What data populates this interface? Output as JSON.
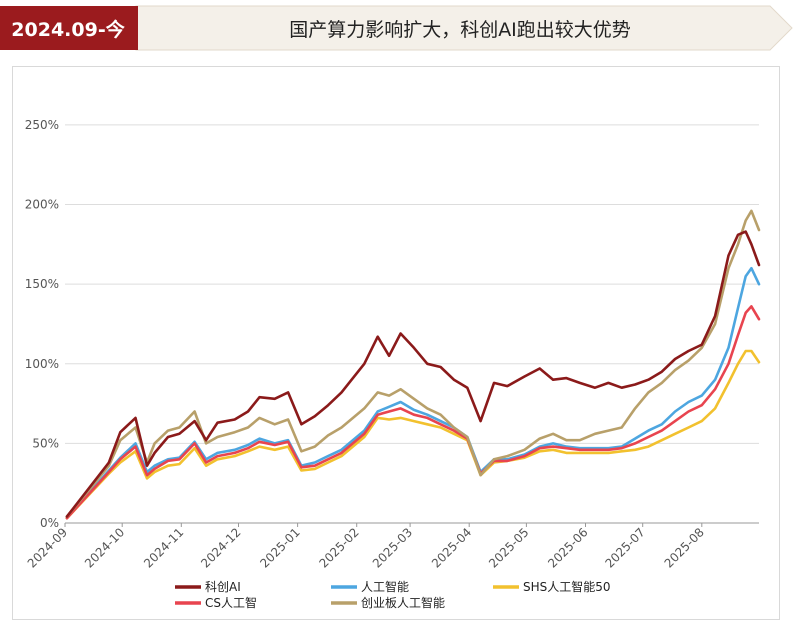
{
  "header": {
    "period": "2024.09-今",
    "headline": "国产算力影响扩大，科创AI跑出较大优势"
  },
  "colors": {
    "banner_red": "#9b1b1e",
    "banner_bg": "#f4f0e9"
  },
  "chart_data": {
    "type": "line",
    "title": "",
    "xlabel": "",
    "ylabel": "",
    "x_start": "2024-09",
    "x_end": "2025-08",
    "x_ticks": [
      "2024-09",
      "2024-10",
      "2024-11",
      "2024-12",
      "2025-01",
      "2025-02",
      "2025-03",
      "2025-04",
      "2025-05",
      "2025-06",
      "2025-07",
      "2025-08"
    ],
    "y_ticks": [
      "0%",
      "50%",
      "100%",
      "150%",
      "200%",
      "250%"
    ],
    "y_tick_values": [
      0,
      50,
      100,
      150,
      200,
      250
    ],
    "ylim": [
      0,
      260
    ],
    "grid": true,
    "legend_position": "bottom",
    "series": [
      {
        "name": "科创AI",
        "color": "#8b1a1a",
        "points": [
          [
            "2024-09-02",
            4
          ],
          [
            "2024-09-24",
            38
          ],
          [
            "2024-09-30",
            57
          ],
          [
            "2024-10-08",
            66
          ],
          [
            "2024-10-14",
            36
          ],
          [
            "2024-10-18",
            44
          ],
          [
            "2024-10-25",
            54
          ],
          [
            "2024-10-31",
            56
          ],
          [
            "2024-11-08",
            64
          ],
          [
            "2024-11-14",
            52
          ],
          [
            "2024-11-20",
            63
          ],
          [
            "2024-11-29",
            65
          ],
          [
            "2024-12-06",
            70
          ],
          [
            "2024-12-12",
            79
          ],
          [
            "2024-12-20",
            78
          ],
          [
            "2024-12-27",
            82
          ],
          [
            "2025-01-03",
            62
          ],
          [
            "2025-01-10",
            67
          ],
          [
            "2025-01-17",
            74
          ],
          [
            "2025-01-24",
            82
          ],
          [
            "2025-02-05",
            100
          ],
          [
            "2025-02-12",
            117
          ],
          [
            "2025-02-18",
            105
          ],
          [
            "2025-02-24",
            119
          ],
          [
            "2025-03-03",
            110
          ],
          [
            "2025-03-10",
            100
          ],
          [
            "2025-03-17",
            98
          ],
          [
            "2025-03-24",
            90
          ],
          [
            "2025-03-31",
            85
          ],
          [
            "2025-04-07",
            64
          ],
          [
            "2025-04-14",
            88
          ],
          [
            "2025-04-21",
            86
          ],
          [
            "2025-04-30",
            92
          ],
          [
            "2025-05-08",
            97
          ],
          [
            "2025-05-15",
            90
          ],
          [
            "2025-05-22",
            91
          ],
          [
            "2025-05-29",
            88
          ],
          [
            "2025-06-06",
            85
          ],
          [
            "2025-06-13",
            88
          ],
          [
            "2025-06-20",
            85
          ],
          [
            "2025-06-27",
            87
          ],
          [
            "2025-07-04",
            90
          ],
          [
            "2025-07-11",
            95
          ],
          [
            "2025-07-18",
            103
          ],
          [
            "2025-07-25",
            108
          ],
          [
            "2025-08-01",
            112
          ],
          [
            "2025-08-08",
            130
          ],
          [
            "2025-08-15",
            168
          ],
          [
            "2025-08-20",
            181
          ],
          [
            "2025-08-24",
            183
          ],
          [
            "2025-08-27",
            175
          ],
          [
            "2025-08-31",
            162
          ]
        ]
      },
      {
        "name": "人工智能",
        "color": "#4da6e0",
        "points": [
          [
            "2024-09-02",
            3
          ],
          [
            "2024-09-24",
            33
          ],
          [
            "2024-09-30",
            41
          ],
          [
            "2024-10-08",
            50
          ],
          [
            "2024-10-14",
            32
          ],
          [
            "2024-10-18",
            36
          ],
          [
            "2024-10-25",
            40
          ],
          [
            "2024-10-31",
            41
          ],
          [
            "2024-11-08",
            51
          ],
          [
            "2024-11-14",
            40
          ],
          [
            "2024-11-20",
            44
          ],
          [
            "2024-11-29",
            46
          ],
          [
            "2024-12-06",
            49
          ],
          [
            "2024-12-12",
            53
          ],
          [
            "2024-12-20",
            50
          ],
          [
            "2024-12-27",
            52
          ],
          [
            "2025-01-03",
            36
          ],
          [
            "2025-01-10",
            38
          ],
          [
            "2025-01-17",
            42
          ],
          [
            "2025-01-24",
            46
          ],
          [
            "2025-02-05",
            58
          ],
          [
            "2025-02-12",
            70
          ],
          [
            "2025-02-18",
            73
          ],
          [
            "2025-02-24",
            76
          ],
          [
            "2025-03-03",
            71
          ],
          [
            "2025-03-10",
            68
          ],
          [
            "2025-03-17",
            64
          ],
          [
            "2025-03-24",
            60
          ],
          [
            "2025-03-31",
            54
          ],
          [
            "2025-04-07",
            32
          ],
          [
            "2025-04-14",
            40
          ],
          [
            "2025-04-21",
            40
          ],
          [
            "2025-04-30",
            43
          ],
          [
            "2025-05-08",
            48
          ],
          [
            "2025-05-15",
            50
          ],
          [
            "2025-05-22",
            48
          ],
          [
            "2025-05-29",
            47
          ],
          [
            "2025-06-06",
            47
          ],
          [
            "2025-06-13",
            47
          ],
          [
            "2025-06-20",
            48
          ],
          [
            "2025-06-27",
            53
          ],
          [
            "2025-07-04",
            58
          ],
          [
            "2025-07-11",
            62
          ],
          [
            "2025-07-18",
            70
          ],
          [
            "2025-07-25",
            76
          ],
          [
            "2025-08-01",
            80
          ],
          [
            "2025-08-08",
            90
          ],
          [
            "2025-08-15",
            110
          ],
          [
            "2025-08-20",
            135
          ],
          [
            "2025-08-24",
            155
          ],
          [
            "2025-08-27",
            160
          ],
          [
            "2025-08-31",
            150
          ]
        ]
      },
      {
        "name": "SHS人工智能50",
        "color": "#f2c12e",
        "points": [
          [
            "2024-09-02",
            3
          ],
          [
            "2024-09-24",
            31
          ],
          [
            "2024-09-30",
            38
          ],
          [
            "2024-10-08",
            45
          ],
          [
            "2024-10-14",
            28
          ],
          [
            "2024-10-18",
            32
          ],
          [
            "2024-10-25",
            36
          ],
          [
            "2024-10-31",
            37
          ],
          [
            "2024-11-08",
            47
          ],
          [
            "2024-11-14",
            36
          ],
          [
            "2024-11-20",
            40
          ],
          [
            "2024-11-29",
            42
          ],
          [
            "2024-12-06",
            45
          ],
          [
            "2024-12-12",
            48
          ],
          [
            "2024-12-20",
            46
          ],
          [
            "2024-12-27",
            48
          ],
          [
            "2025-01-03",
            33
          ],
          [
            "2025-01-10",
            34
          ],
          [
            "2025-01-17",
            38
          ],
          [
            "2025-01-24",
            42
          ],
          [
            "2025-02-05",
            54
          ],
          [
            "2025-02-12",
            66
          ],
          [
            "2025-02-18",
            65
          ],
          [
            "2025-02-24",
            66
          ],
          [
            "2025-03-03",
            64
          ],
          [
            "2025-03-10",
            62
          ],
          [
            "2025-03-17",
            60
          ],
          [
            "2025-03-24",
            56
          ],
          [
            "2025-03-31",
            52
          ],
          [
            "2025-04-07",
            30
          ],
          [
            "2025-04-14",
            38
          ],
          [
            "2025-04-21",
            39
          ],
          [
            "2025-04-30",
            41
          ],
          [
            "2025-05-08",
            45
          ],
          [
            "2025-05-15",
            46
          ],
          [
            "2025-05-22",
            44
          ],
          [
            "2025-05-29",
            44
          ],
          [
            "2025-06-06",
            44
          ],
          [
            "2025-06-13",
            44
          ],
          [
            "2025-06-20",
            45
          ],
          [
            "2025-06-27",
            46
          ],
          [
            "2025-07-04",
            48
          ],
          [
            "2025-07-11",
            52
          ],
          [
            "2025-07-18",
            56
          ],
          [
            "2025-07-25",
            60
          ],
          [
            "2025-08-01",
            64
          ],
          [
            "2025-08-08",
            72
          ],
          [
            "2025-08-15",
            88
          ],
          [
            "2025-08-20",
            100
          ],
          [
            "2025-08-24",
            108
          ],
          [
            "2025-08-27",
            108
          ],
          [
            "2025-08-31",
            101
          ]
        ]
      },
      {
        "name": "CS人工智",
        "color": "#e8444f",
        "points": [
          [
            "2024-09-02",
            3
          ],
          [
            "2024-09-24",
            32
          ],
          [
            "2024-09-30",
            40
          ],
          [
            "2024-10-08",
            48
          ],
          [
            "2024-10-14",
            30
          ],
          [
            "2024-10-18",
            34
          ],
          [
            "2024-10-25",
            39
          ],
          [
            "2024-10-31",
            40
          ],
          [
            "2024-11-08",
            50
          ],
          [
            "2024-11-14",
            38
          ],
          [
            "2024-11-20",
            42
          ],
          [
            "2024-11-29",
            44
          ],
          [
            "2024-12-06",
            47
          ],
          [
            "2024-12-12",
            51
          ],
          [
            "2024-12-20",
            49
          ],
          [
            "2024-12-27",
            51
          ],
          [
            "2025-01-03",
            35
          ],
          [
            "2025-01-10",
            36
          ],
          [
            "2025-01-17",
            40
          ],
          [
            "2025-01-24",
            44
          ],
          [
            "2025-02-05",
            56
          ],
          [
            "2025-02-12",
            68
          ],
          [
            "2025-02-18",
            70
          ],
          [
            "2025-02-24",
            72
          ],
          [
            "2025-03-03",
            68
          ],
          [
            "2025-03-10",
            66
          ],
          [
            "2025-03-17",
            62
          ],
          [
            "2025-03-24",
            58
          ],
          [
            "2025-03-31",
            53
          ],
          [
            "2025-04-07",
            31
          ],
          [
            "2025-04-14",
            39
          ],
          [
            "2025-04-21",
            39
          ],
          [
            "2025-04-30",
            42
          ],
          [
            "2025-05-08",
            47
          ],
          [
            "2025-05-15",
            48
          ],
          [
            "2025-05-22",
            47
          ],
          [
            "2025-05-29",
            46
          ],
          [
            "2025-06-06",
            46
          ],
          [
            "2025-06-13",
            46
          ],
          [
            "2025-06-20",
            47
          ],
          [
            "2025-06-27",
            50
          ],
          [
            "2025-07-04",
            54
          ],
          [
            "2025-07-11",
            58
          ],
          [
            "2025-07-18",
            64
          ],
          [
            "2025-07-25",
            70
          ],
          [
            "2025-08-01",
            74
          ],
          [
            "2025-08-08",
            84
          ],
          [
            "2025-08-15",
            100
          ],
          [
            "2025-08-20",
            118
          ],
          [
            "2025-08-24",
            132
          ],
          [
            "2025-08-27",
            136
          ],
          [
            "2025-08-31",
            128
          ]
        ]
      },
      {
        "name": "创业板人工智能",
        "color": "#b8a06a",
        "points": [
          [
            "2024-09-02",
            4
          ],
          [
            "2024-09-24",
            36
          ],
          [
            "2024-09-30",
            52
          ],
          [
            "2024-10-08",
            60
          ],
          [
            "2024-10-14",
            38
          ],
          [
            "2024-10-18",
            50
          ],
          [
            "2024-10-25",
            58
          ],
          [
            "2024-10-31",
            60
          ],
          [
            "2024-11-08",
            70
          ],
          [
            "2024-11-14",
            50
          ],
          [
            "2024-11-20",
            54
          ],
          [
            "2024-11-29",
            57
          ],
          [
            "2024-12-06",
            60
          ],
          [
            "2024-12-12",
            66
          ],
          [
            "2024-12-20",
            62
          ],
          [
            "2024-12-27",
            65
          ],
          [
            "2025-01-03",
            45
          ],
          [
            "2025-01-10",
            48
          ],
          [
            "2025-01-17",
            55
          ],
          [
            "2025-01-24",
            60
          ],
          [
            "2025-02-05",
            72
          ],
          [
            "2025-02-12",
            82
          ],
          [
            "2025-02-18",
            80
          ],
          [
            "2025-02-24",
            84
          ],
          [
            "2025-03-03",
            78
          ],
          [
            "2025-03-10",
            72
          ],
          [
            "2025-03-17",
            68
          ],
          [
            "2025-03-24",
            60
          ],
          [
            "2025-03-31",
            54
          ],
          [
            "2025-04-07",
            30
          ],
          [
            "2025-04-14",
            40
          ],
          [
            "2025-04-21",
            42
          ],
          [
            "2025-04-30",
            46
          ],
          [
            "2025-05-08",
            53
          ],
          [
            "2025-05-15",
            56
          ],
          [
            "2025-05-22",
            52
          ],
          [
            "2025-05-29",
            52
          ],
          [
            "2025-06-06",
            56
          ],
          [
            "2025-06-13",
            58
          ],
          [
            "2025-06-20",
            60
          ],
          [
            "2025-06-27",
            72
          ],
          [
            "2025-07-04",
            82
          ],
          [
            "2025-07-11",
            88
          ],
          [
            "2025-07-18",
            96
          ],
          [
            "2025-07-25",
            102
          ],
          [
            "2025-08-01",
            110
          ],
          [
            "2025-08-08",
            125
          ],
          [
            "2025-08-15",
            160
          ],
          [
            "2025-08-20",
            175
          ],
          [
            "2025-08-24",
            190
          ],
          [
            "2025-08-27",
            196
          ],
          [
            "2025-08-31",
            184
          ]
        ]
      }
    ]
  }
}
